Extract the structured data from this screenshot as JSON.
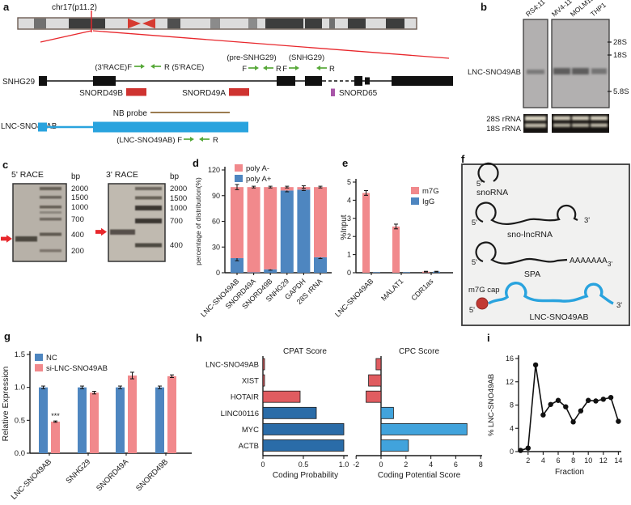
{
  "panels": {
    "a": "a",
    "b": "b",
    "c": "c",
    "d": "d",
    "e": "e",
    "f": "f",
    "g": "g",
    "h": "h",
    "i": "i"
  },
  "colors": {
    "salmon": "#F1898C",
    "steel_blue": "#4E86C0",
    "dark_blue": "#2A6CA8",
    "light_blue": "#41A3DC",
    "coral_red": "#E05C60",
    "sky_blue": "#29A3DE",
    "snord_red": "#CF3330",
    "snord65_purple": "#A855A8",
    "probe_brown": "#9B7B50",
    "primer_green": "#56A838",
    "accent_red": "#E8272C"
  },
  "panel_a": {
    "chr_label": "chr17(p11.2)",
    "gene_label": "SNHG29",
    "race3_label": "(3'RACE)F",
    "race5_label": "R (5'RACE)",
    "pre_label": "(pre-SNHG29)",
    "snhg_label": "(SNHG29)",
    "f": "F",
    "r": "R",
    "snord49b": "SNORD49B",
    "snord49a": "SNORD49A",
    "snord65": "SNORD65",
    "nb_probe": "NB probe",
    "transcript_label": "LNC-SNO49AB",
    "lnc_primer_label": "(LNC-SNO49AB) F"
  },
  "panel_b": {
    "lanes": [
      "RS4;11",
      "MV4-11",
      "MOLM13",
      "THP1"
    ],
    "band_label": "LNC-SNO49AB",
    "markers": [
      "28S",
      "18S",
      "5.8S"
    ],
    "rrna": [
      "28S rRNA",
      "18S rRNA"
    ]
  },
  "panel_c": {
    "gel1_title": "5' RACE",
    "gel2_title": "3' RACE",
    "bp": "bp",
    "gel1_markers": [
      "2000",
      "1500",
      "1000",
      "700",
      "400",
      "200"
    ],
    "gel2_markers": [
      "2000",
      "1500",
      "1000",
      "700",
      "400"
    ]
  },
  "panel_f": {
    "snoRNA": "snoRNA",
    "sno_lncRNA": "sno-lncRNA",
    "spa": "SPA",
    "lnc_label": "LNC-SNO49AB",
    "cap_label": "m7G cap",
    "polya": "AAAAAAA",
    "p5": "5'",
    "p3": "3'"
  },
  "chart_data": [
    {
      "id": "d",
      "type": "bar",
      "stacked": true,
      "ylabel": "percentage of distribution(%)",
      "ylim": [
        0,
        120
      ],
      "yticks": [
        "0",
        "30",
        "60",
        "90",
        "120"
      ],
      "categories": [
        "LNC-SNO49AB",
        "SNORD49A",
        "SNORD49B",
        "SNHG29",
        "GAPDH",
        "28S rRNA"
      ],
      "series": [
        {
          "name": "poly A+",
          "color": "#4E86C0",
          "values": [
            17,
            0.5,
            4,
            96,
            97,
            18
          ],
          "errors": [
            3,
            0,
            1,
            1.5,
            1,
            1.5
          ]
        },
        {
          "name": "poly A-",
          "color": "#F1898C",
          "values": [
            83,
            99.5,
            96,
            4,
            3,
            82
          ],
          "errors": [
            3,
            1,
            1,
            1,
            1.5,
            1
          ]
        }
      ],
      "legend": [
        {
          "label": "poly A-",
          "color": "#F1898C"
        },
        {
          "label": "poly A+",
          "color": "#4E86C0"
        }
      ]
    },
    {
      "id": "e",
      "type": "bar",
      "stacked": false,
      "ylabel": "%Input",
      "ylim": [
        0,
        5
      ],
      "yticks": [
        "0",
        "1",
        "2",
        "3",
        "4",
        "5"
      ],
      "categories": [
        "LNC-SNO49AB",
        "MALAT1",
        "CDR1as"
      ],
      "series": [
        {
          "name": "m7G",
          "color": "#F1898C",
          "values": [
            4.4,
            2.55,
            0.06
          ],
          "errors": [
            0.13,
            0.13,
            0.02
          ]
        },
        {
          "name": "IgG",
          "color": "#4E86C0",
          "values": [
            0.03,
            0.03,
            0.06
          ],
          "errors": [
            0,
            0,
            0.02
          ]
        }
      ],
      "legend": [
        {
          "label": "m7G",
          "color": "#F1898C"
        },
        {
          "label": "IgG",
          "color": "#4E86C0"
        }
      ]
    },
    {
      "id": "g",
      "type": "bar",
      "stacked": false,
      "ylabel": "Relative Expression",
      "ylim": [
        0,
        1.5
      ],
      "yticks": [
        "0.0",
        "0.5",
        "1.0",
        "1.5"
      ],
      "categories": [
        "LNC-SNO49AB",
        "SNHG29",
        "SNORD49A",
        "SNORD49B"
      ],
      "series": [
        {
          "name": "NC",
          "color": "#4E86C0",
          "values": [
            1.0,
            1.0,
            1.0,
            1.0
          ],
          "errors": [
            0.02,
            0.02,
            0.02,
            0.02
          ]
        },
        {
          "name": "si-LNC-SNO49AB",
          "color": "#F1898C",
          "values": [
            0.48,
            0.92,
            1.18,
            1.17
          ],
          "errors": [
            0.01,
            0.02,
            0.05,
            0.02
          ]
        }
      ],
      "legend": [
        {
          "label": "NC",
          "color": "#4E86C0"
        },
        {
          "label": "si-LNC-SNO49AB",
          "color": "#F1898C"
        }
      ],
      "annotations": [
        {
          "cat": 0,
          "series": 1,
          "text": "***"
        }
      ]
    },
    {
      "id": "h_cpat",
      "type": "bar",
      "orientation": "horizontal",
      "title": "CPAT Score",
      "xlabel": "Coding Probability",
      "xlim": [
        0,
        1.0
      ],
      "xticks": [
        "0",
        "0.5",
        "1.0"
      ],
      "categories": [
        "LNC-SNO49AB",
        "XIST",
        "HOTAIR",
        "LINC00116",
        "MYC",
        "ACTB"
      ],
      "values": [
        0.02,
        0.02,
        0.46,
        0.66,
        1.0,
        1.0
      ],
      "bar_colors": [
        "#E05C60",
        "#E05C60",
        "#E05C60",
        "#2A6CA8",
        "#2A6CA8",
        "#2A6CA8"
      ]
    },
    {
      "id": "h_cpc",
      "type": "bar",
      "orientation": "horizontal",
      "title": "CPC Score",
      "xlabel": "Coding Potential Score",
      "xlim": [
        -2,
        8
      ],
      "xticks": [
        "-2",
        "0",
        "2",
        "4",
        "6",
        "8"
      ],
      "categories": [
        "LNC-SNO49AB",
        "XIST",
        "HOTAIR",
        "LINC00116",
        "MYC",
        "ACTB"
      ],
      "values": [
        -0.4,
        -1.0,
        -1.2,
        1.0,
        6.9,
        2.2
      ],
      "bar_colors": [
        "#E05C60",
        "#E05C60",
        "#E05C60",
        "#41A3DC",
        "#41A3DC",
        "#41A3DC"
      ]
    },
    {
      "id": "i",
      "type": "line",
      "xlabel": "Fraction",
      "ylabel": "% LNC-SNO49AB",
      "xlim": [
        1,
        14
      ],
      "ylim": [
        0,
        16
      ],
      "xticks": [
        "2",
        "4",
        "6",
        "8",
        "10",
        "12",
        "14"
      ],
      "yticks": [
        "0",
        "4",
        "8",
        "12",
        "16"
      ],
      "x": [
        1,
        2,
        3,
        4,
        5,
        6,
        7,
        8,
        9,
        10,
        11,
        12,
        13,
        14
      ],
      "y": [
        0.2,
        0.6,
        14.9,
        6.3,
        8.1,
        8.8,
        7.7,
        5.1,
        7.0,
        8.8,
        8.7,
        9.0,
        9.3,
        5.2
      ]
    }
  ]
}
